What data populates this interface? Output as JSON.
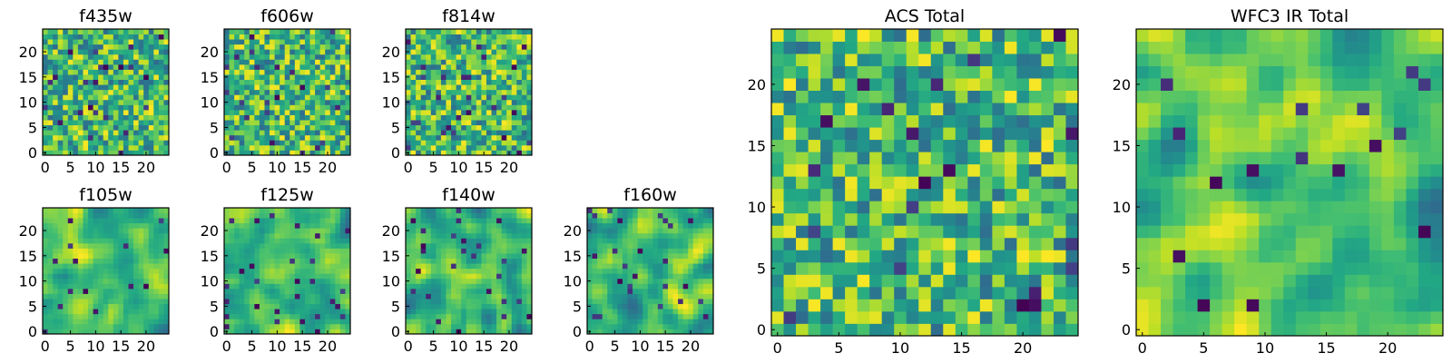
{
  "chart_data": [
    {
      "type": "heatmap",
      "title": "f435w",
      "colormap": "viridis",
      "grid_size": 25,
      "xlim": [
        0,
        24
      ],
      "ylim": [
        0,
        24
      ],
      "xticks": [
        0,
        5,
        10,
        15,
        20
      ],
      "yticks": [
        0,
        5,
        10,
        15,
        20
      ],
      "texture": "pixel noise",
      "seed": 11
    },
    {
      "type": "heatmap",
      "title": "f606w",
      "colormap": "viridis",
      "grid_size": 25,
      "xlim": [
        0,
        24
      ],
      "ylim": [
        0,
        24
      ],
      "xticks": [
        0,
        5,
        10,
        15,
        20
      ],
      "yticks": [
        0,
        5,
        10,
        15,
        20
      ],
      "texture": "pixel noise",
      "seed": 23
    },
    {
      "type": "heatmap",
      "title": "f814w",
      "colormap": "viridis",
      "grid_size": 25,
      "xlim": [
        0,
        24
      ],
      "ylim": [
        0,
        24
      ],
      "xticks": [
        0,
        5,
        10,
        15,
        20
      ],
      "yticks": [
        0,
        5,
        10,
        15,
        20
      ],
      "texture": "pixel noise",
      "seed": 37
    },
    {
      "type": "heatmap",
      "title": "f105w",
      "colormap": "viridis",
      "grid_size": 25,
      "xlim": [
        0,
        24
      ],
      "ylim": [
        0,
        24
      ],
      "xticks": [
        0,
        5,
        10,
        15,
        20
      ],
      "yticks": [
        0,
        5,
        10,
        15,
        20
      ],
      "texture": "smooth",
      "seed": 41
    },
    {
      "type": "heatmap",
      "title": "f125w",
      "colormap": "viridis",
      "grid_size": 25,
      "xlim": [
        0,
        24
      ],
      "ylim": [
        0,
        24
      ],
      "xticks": [
        0,
        5,
        10,
        15,
        20
      ],
      "yticks": [
        0,
        5,
        10,
        15,
        20
      ],
      "texture": "smooth",
      "seed": 53
    },
    {
      "type": "heatmap",
      "title": "f140w",
      "colormap": "viridis",
      "grid_size": 25,
      "xlim": [
        0,
        24
      ],
      "ylim": [
        0,
        24
      ],
      "xticks": [
        0,
        5,
        10,
        15,
        20
      ],
      "yticks": [
        0,
        5,
        10,
        15,
        20
      ],
      "texture": "smooth",
      "seed": 67
    },
    {
      "type": "heatmap",
      "title": "f160w",
      "colormap": "viridis",
      "grid_size": 25,
      "xlim": [
        0,
        24
      ],
      "ylim": [
        0,
        24
      ],
      "xticks": [
        0,
        5,
        10,
        15,
        20
      ],
      "yticks": [
        0,
        5,
        10,
        15,
        20
      ],
      "texture": "smooth",
      "seed": 79
    },
    {
      "type": "heatmap",
      "title": "ACS Total",
      "colormap": "viridis",
      "grid_size": 25,
      "xlim": [
        0,
        24
      ],
      "ylim": [
        0,
        24
      ],
      "xticks": [
        0,
        5,
        10,
        15,
        20
      ],
      "yticks": [
        0,
        5,
        10,
        15,
        20
      ],
      "texture": "pixel noise",
      "seed": 97
    },
    {
      "type": "heatmap",
      "title": "WFC3 IR Total",
      "colormap": "viridis",
      "grid_size": 25,
      "xlim": [
        0,
        24
      ],
      "ylim": [
        0,
        24
      ],
      "xticks": [
        0,
        5,
        10,
        15,
        20
      ],
      "yticks": [
        0,
        5,
        10,
        15,
        20
      ],
      "texture": "smooth",
      "seed": 113
    }
  ]
}
